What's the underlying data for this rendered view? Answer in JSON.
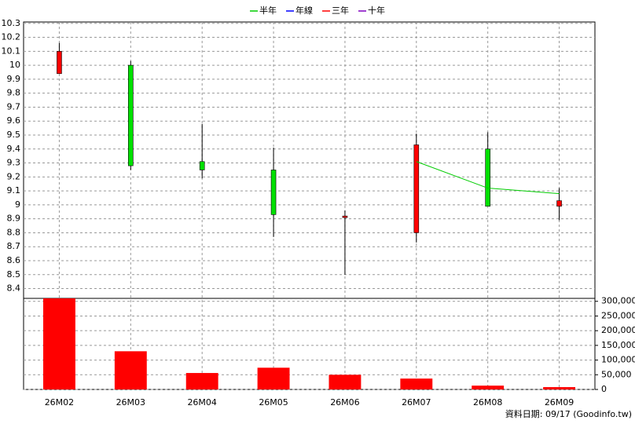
{
  "chart_data": {
    "type": "candlestick",
    "categories": [
      "26M02",
      "26M03",
      "26M04",
      "26M05",
      "26M06",
      "26M07",
      "26M08",
      "26M09"
    ],
    "open": [
      9.94,
      10.0,
      9.31,
      9.25,
      8.91,
      8.8,
      9.4,
      8.99
    ],
    "high": [
      10.16,
      10.03,
      9.58,
      9.41,
      8.96,
      9.51,
      9.52,
      9.12
    ],
    "low": [
      9.94,
      9.25,
      9.19,
      8.77,
      8.5,
      8.73,
      8.99,
      8.89
    ],
    "close": [
      10.1,
      9.28,
      9.25,
      8.93,
      8.92,
      9.43,
      8.99,
      9.03
    ],
    "up_color": "#ff0000",
    "down_color": "#00e000",
    "series": [
      {
        "name": "半年",
        "color": "#00cc00",
        "values": [
          null,
          null,
          null,
          null,
          null,
          9.31,
          9.12,
          9.08
        ]
      },
      {
        "name": "年線",
        "color": "#0000ff",
        "values": [
          null,
          null,
          null,
          null,
          null,
          null,
          null,
          null
        ]
      },
      {
        "name": "三年",
        "color": "#ff0000",
        "values": [
          null,
          null,
          null,
          null,
          null,
          null,
          null,
          null
        ]
      },
      {
        "name": "十年",
        "color": "#8000c0",
        "values": [
          null,
          null,
          null,
          null,
          null,
          null,
          null,
          null
        ]
      }
    ],
    "ylim": [
      8.33,
      10.31
    ],
    "yticks": [
      10.3,
      10.2,
      10.1,
      10,
      9.9,
      9.8,
      9.7,
      9.6,
      9.5,
      9.4,
      9.3,
      9.2,
      9.1,
      9,
      8.9,
      8.8,
      8.7,
      8.6,
      8.5,
      8.4
    ],
    "volume": {
      "color": "#ff0000",
      "values": [
        310000,
        130000,
        56000,
        74000,
        50000,
        37000,
        13000,
        8000
      ]
    },
    "y2lim": [
      0,
      310000
    ],
    "y2ticks": [
      {
        "value": 300000,
        "label": "300,000"
      },
      {
        "value": 250000,
        "label": "250,000"
      },
      {
        "value": 200000,
        "label": "200,000"
      },
      {
        "value": 150000,
        "label": "150,000"
      },
      {
        "value": 100000,
        "label": "100,000"
      },
      {
        "value": 50000,
        "label": "50,000"
      },
      0
    ],
    "grid": true,
    "footer": "資料日期: 09/17 (Goodinfo.tw)"
  }
}
